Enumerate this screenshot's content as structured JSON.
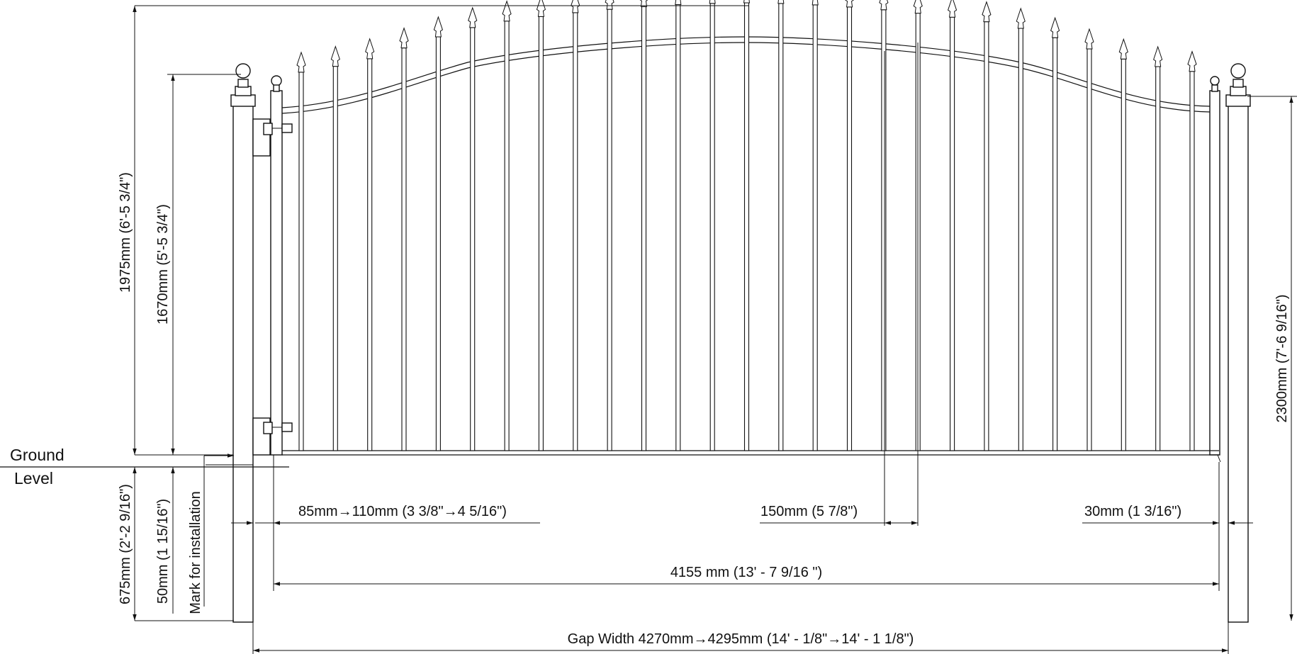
{
  "labels": {
    "ground_line1": "Ground",
    "ground_line2": "Level",
    "h_gate_total": "1975mm (6'-5 3/4\")",
    "h_gate_post": "1670mm (5'-5 3/4\")",
    "h_post_total": "2300mm (7'-6 9/16\")",
    "h_post_footing": "675mm (2'-2 9/16\")",
    "h_clearance": "50mm (1 15/16\")",
    "mark_install": "Mark for installation",
    "w_hinge_gap": "85mm→110mm (3 3/8\"→4 5/16\")",
    "w_bar_spacing": "150mm (5 7/8\")",
    "w_latch_gap": "30mm (1 3/16\")",
    "w_gate": "4155 mm (13' - 7 9/16 \")",
    "w_gap": "Gap Width 4270mm→4295mm (14' - 1/8\"→14' - 1 1/8\")"
  },
  "gate": {
    "bar_count": 27,
    "finial": "spear-finial",
    "post_cap": "ball-cap",
    "top_rail": "double-bow arch"
  },
  "colors": {
    "line": "#111111",
    "background": "#ffffff"
  }
}
